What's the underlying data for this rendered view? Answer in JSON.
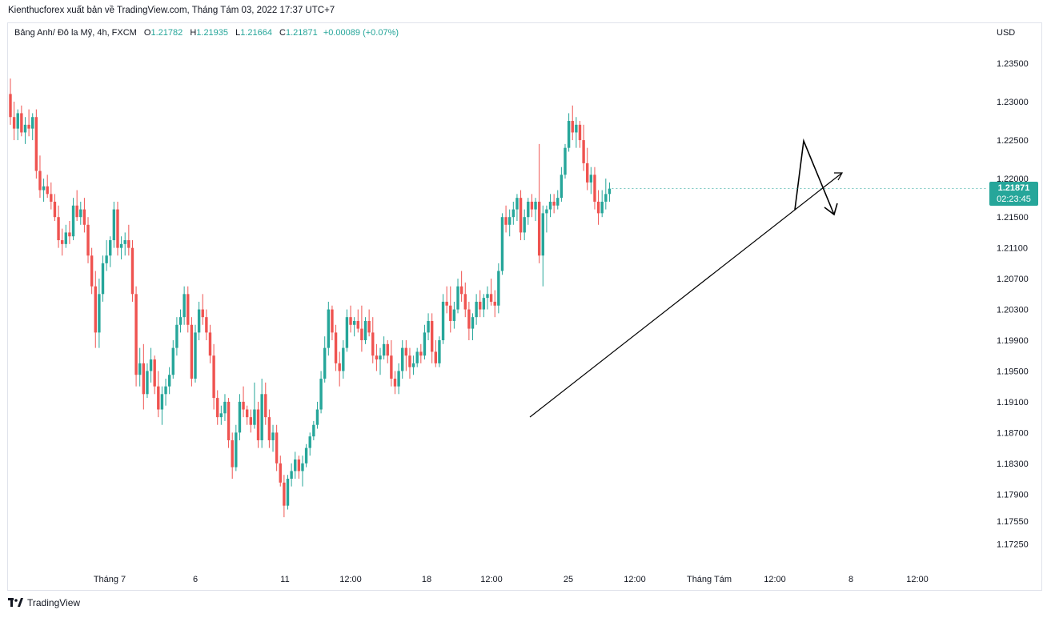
{
  "header": {
    "publish_line": "Kienthucforex xuất bản về TradingView.com, Tháng Tám 03, 2022 17:37 UTC+7"
  },
  "legend": {
    "symbol": "Bảng Anh/ Đô la Mỹ, 4h, FXCM",
    "open_label": "O",
    "open": "1.21782",
    "high_label": "H",
    "high": "1.21935",
    "low_label": "L",
    "low": "1.21664",
    "close_label": "C",
    "close": "1.21871",
    "change": "+0.00089 (+0.07%)"
  },
  "price_badge": {
    "price": "1.21871",
    "countdown": "02:23:45"
  },
  "brand": {
    "name": "TradingView",
    "logo": "tradingview-logo-icon"
  },
  "colors": {
    "up": "#26a69a",
    "down": "#ef5350",
    "grid": "#e0e3eb",
    "text": "#131722"
  },
  "chart_data": {
    "type": "candlestick",
    "currency": "USD",
    "y_ticks": [
      1.235,
      1.23,
      1.225,
      1.22,
      1.215,
      1.211,
      1.207,
      1.203,
      1.199,
      1.195,
      1.191,
      1.187,
      1.183,
      1.179,
      1.1755,
      1.1725
    ],
    "y_tick_labels": [
      "1.23500",
      "1.23000",
      "1.22500",
      "1.22000",
      "1.21500",
      "1.21100",
      "1.20700",
      "1.20300",
      "1.19900",
      "1.19500",
      "1.19100",
      "1.18700",
      "1.18300",
      "1.17900",
      "1.17550",
      "1.17250"
    ],
    "x_tick_labels": [
      "Tháng 7",
      "6",
      "11",
      "12:00",
      "18",
      "12:00",
      "25",
      "12:00",
      "Tháng Tám",
      "12:00",
      "8",
      "12:00"
    ],
    "ohlc": [
      [
        1.231,
        1.233,
        1.227,
        1.228
      ],
      [
        1.228,
        1.23,
        1.225,
        1.2265
      ],
      [
        1.2265,
        1.229,
        1.225,
        1.2285
      ],
      [
        1.2285,
        1.2295,
        1.2255,
        1.226
      ],
      [
        1.226,
        1.228,
        1.2245,
        1.227
      ],
      [
        1.227,
        1.229,
        1.2255,
        1.2265
      ],
      [
        1.2265,
        1.2285,
        1.225,
        1.228
      ],
      [
        1.228,
        1.229,
        1.22,
        1.221
      ],
      [
        1.221,
        1.223,
        1.2175,
        1.2185
      ],
      [
        1.2185,
        1.22,
        1.217,
        1.219
      ],
      [
        1.219,
        1.2205,
        1.2175,
        1.218
      ],
      [
        1.218,
        1.2195,
        1.216,
        1.217
      ],
      [
        1.217,
        1.218,
        1.2145,
        1.215
      ],
      [
        1.215,
        1.2165,
        1.211,
        1.212
      ],
      [
        1.212,
        1.2135,
        1.21,
        1.2115
      ],
      [
        1.2115,
        1.214,
        1.211,
        1.213
      ],
      [
        1.213,
        1.2145,
        1.2115,
        1.2125
      ],
      [
        1.2125,
        1.2175,
        1.212,
        1.2165
      ],
      [
        1.2165,
        1.2185,
        1.2145,
        1.215
      ],
      [
        1.215,
        1.217,
        1.214,
        1.216
      ],
      [
        1.216,
        1.2175,
        1.213,
        1.214
      ],
      [
        1.214,
        1.215,
        1.209,
        1.21
      ],
      [
        1.21,
        1.211,
        1.205,
        1.206
      ],
      [
        1.206,
        1.208,
        1.198,
        1.2
      ],
      [
        1.2,
        1.207,
        1.198,
        1.205
      ],
      [
        1.205,
        1.21,
        1.204,
        1.209
      ],
      [
        1.209,
        1.212,
        1.208,
        1.21
      ],
      [
        1.21,
        1.2125,
        1.2085,
        1.212
      ],
      [
        1.212,
        1.217,
        1.211,
        1.216
      ],
      [
        1.216,
        1.217,
        1.21,
        1.211
      ],
      [
        1.211,
        1.2125,
        1.2095,
        1.2115
      ],
      [
        1.2115,
        1.213,
        1.21,
        1.212
      ],
      [
        1.212,
        1.214,
        1.21,
        1.211
      ],
      [
        1.211,
        1.212,
        1.204,
        1.205
      ],
      [
        1.205,
        1.206,
        1.193,
        1.1945
      ],
      [
        1.1945,
        1.198,
        1.193,
        1.196
      ],
      [
        1.196,
        1.1985,
        1.19,
        1.192
      ],
      [
        1.192,
        1.196,
        1.1915,
        1.195
      ],
      [
        1.195,
        1.198,
        1.1935,
        1.1965
      ],
      [
        1.1965,
        1.197,
        1.192,
        1.193
      ],
      [
        1.193,
        1.195,
        1.189,
        1.19
      ],
      [
        1.19,
        1.193,
        1.188,
        1.192
      ],
      [
        1.192,
        1.194,
        1.1905,
        1.193
      ],
      [
        1.193,
        1.1955,
        1.192,
        1.1945
      ],
      [
        1.1945,
        1.199,
        1.194,
        1.198
      ],
      [
        1.198,
        1.202,
        1.197,
        1.201
      ],
      [
        1.201,
        1.203,
        1.2,
        1.202
      ],
      [
        1.202,
        1.206,
        1.201,
        1.205
      ],
      [
        1.205,
        1.206,
        1.2,
        1.201
      ],
      [
        1.201,
        1.202,
        1.193,
        1.194
      ],
      [
        1.194,
        1.201,
        1.1935,
        1.2
      ],
      [
        1.2,
        1.204,
        1.199,
        1.203
      ],
      [
        1.203,
        1.205,
        1.201,
        1.202
      ],
      [
        1.202,
        1.203,
        1.199,
        1.2
      ],
      [
        1.2,
        1.201,
        1.196,
        1.197
      ],
      [
        1.197,
        1.1985,
        1.19,
        1.1915
      ],
      [
        1.1915,
        1.1925,
        1.188,
        1.189
      ],
      [
        1.189,
        1.1905,
        1.188,
        1.1895
      ],
      [
        1.1895,
        1.192,
        1.1885,
        1.191
      ],
      [
        1.191,
        1.1915,
        1.185,
        1.186
      ],
      [
        1.186,
        1.187,
        1.181,
        1.1825
      ],
      [
        1.1825,
        1.188,
        1.182,
        1.187
      ],
      [
        1.187,
        1.192,
        1.186,
        1.191
      ],
      [
        1.191,
        1.193,
        1.189,
        1.19
      ],
      [
        1.19,
        1.1905,
        1.188,
        1.189
      ],
      [
        1.189,
        1.19,
        1.187,
        1.188
      ],
      [
        1.188,
        1.1935,
        1.1875,
        1.19
      ],
      [
        1.19,
        1.191,
        1.185,
        1.186
      ],
      [
        1.186,
        1.194,
        1.185,
        1.192
      ],
      [
        1.192,
        1.1935,
        1.188,
        1.189
      ],
      [
        1.189,
        1.19,
        1.185,
        1.186
      ],
      [
        1.186,
        1.188,
        1.1845,
        1.187
      ],
      [
        1.187,
        1.188,
        1.182,
        1.183
      ],
      [
        1.183,
        1.184,
        1.18,
        1.1805
      ],
      [
        1.1805,
        1.1815,
        1.176,
        1.1775
      ],
      [
        1.1775,
        1.1815,
        1.177,
        1.181
      ],
      [
        1.181,
        1.183,
        1.18,
        1.182
      ],
      [
        1.182,
        1.1845,
        1.181,
        1.1835
      ],
      [
        1.1835,
        1.184,
        1.181,
        1.182
      ],
      [
        1.182,
        1.184,
        1.18,
        1.183
      ],
      [
        1.183,
        1.1855,
        1.1825,
        1.185
      ],
      [
        1.185,
        1.187,
        1.184,
        1.1865
      ],
      [
        1.1865,
        1.1885,
        1.186,
        1.188
      ],
      [
        1.188,
        1.191,
        1.1875,
        1.19
      ],
      [
        1.19,
        1.195,
        1.1895,
        1.194
      ],
      [
        1.194,
        1.1995,
        1.1935,
        1.198
      ],
      [
        1.198,
        1.204,
        1.197,
        1.203
      ],
      [
        1.203,
        1.2035,
        1.199,
        1.2
      ],
      [
        1.2,
        1.201,
        1.195,
        1.196
      ],
      [
        1.196,
        1.1975,
        1.193,
        1.195
      ],
      [
        1.195,
        1.199,
        1.194,
        1.198
      ],
      [
        1.198,
        1.203,
        1.1975,
        1.202
      ],
      [
        1.202,
        1.2035,
        1.2,
        1.201
      ],
      [
        1.201,
        1.202,
        1.1995,
        1.2015
      ],
      [
        1.2015,
        1.203,
        1.2,
        1.2005
      ],
      [
        1.2005,
        1.2035,
        1.1975,
        1.199
      ],
      [
        1.199,
        1.202,
        1.1985,
        1.2015
      ],
      [
        1.2015,
        1.203,
        1.1995,
        1.2
      ],
      [
        1.2,
        1.202,
        1.196,
        1.197
      ],
      [
        1.197,
        1.1985,
        1.195,
        1.1965
      ],
      [
        1.1965,
        1.198,
        1.1945,
        1.197
      ],
      [
        1.197,
        1.1995,
        1.1965,
        1.1985
      ],
      [
        1.1985,
        1.199,
        1.196,
        1.197
      ],
      [
        1.197,
        1.199,
        1.193,
        1.194
      ],
      [
        1.194,
        1.195,
        1.192,
        1.193
      ],
      [
        1.193,
        1.196,
        1.192,
        1.195
      ],
      [
        1.195,
        1.199,
        1.194,
        1.198
      ],
      [
        1.198,
        1.199,
        1.195,
        1.197
      ],
      [
        1.197,
        1.198,
        1.194,
        1.1955
      ],
      [
        1.1955,
        1.197,
        1.1945,
        1.196
      ],
      [
        1.196,
        1.198,
        1.1955,
        1.1975
      ],
      [
        1.1975,
        1.1985,
        1.196,
        1.197
      ],
      [
        1.197,
        1.201,
        1.1965,
        1.2
      ],
      [
        1.2,
        1.2025,
        1.199,
        1.2015
      ],
      [
        1.2015,
        1.2025,
        1.196,
        1.1975
      ],
      [
        1.1975,
        1.199,
        1.1955,
        1.196
      ],
      [
        1.196,
        1.1995,
        1.1955,
        1.199
      ],
      [
        1.199,
        1.205,
        1.1985,
        1.204
      ],
      [
        1.204,
        1.206,
        1.2025,
        1.2035
      ],
      [
        1.2035,
        1.206,
        1.2,
        1.2015
      ],
      [
        1.2015,
        1.204,
        1.2005,
        1.203
      ],
      [
        1.203,
        1.207,
        1.2025,
        1.206
      ],
      [
        1.206,
        1.208,
        1.204,
        1.205
      ],
      [
        1.205,
        1.2065,
        1.202,
        1.203
      ],
      [
        1.203,
        1.204,
        1.199,
        1.2005
      ],
      [
        1.2005,
        1.2025,
        1.199,
        1.202
      ],
      [
        1.202,
        1.205,
        1.201,
        1.204
      ],
      [
        1.204,
        1.2055,
        1.202,
        1.203
      ],
      [
        1.203,
        1.205,
        1.202,
        1.2045
      ],
      [
        1.2045,
        1.206,
        1.203,
        1.205
      ],
      [
        1.205,
        1.207,
        1.2035,
        1.204
      ],
      [
        1.204,
        1.2055,
        1.202,
        1.2035
      ],
      [
        1.2035,
        1.209,
        1.2025,
        1.208
      ],
      [
        1.208,
        1.2155,
        1.2075,
        1.215
      ],
      [
        1.215,
        1.2165,
        1.213,
        1.214
      ],
      [
        1.214,
        1.216,
        1.2125,
        1.215
      ],
      [
        1.215,
        1.217,
        1.214,
        1.216
      ],
      [
        1.216,
        1.218,
        1.2145,
        1.2175
      ],
      [
        1.2175,
        1.2185,
        1.212,
        1.213
      ],
      [
        1.213,
        1.216,
        1.212,
        1.215
      ],
      [
        1.215,
        1.2175,
        1.214,
        1.217
      ],
      [
        1.217,
        1.218,
        1.215,
        1.216
      ],
      [
        1.216,
        1.2175,
        1.2145,
        1.217
      ],
      [
        1.217,
        1.2245,
        1.209,
        1.21
      ],
      [
        1.21,
        1.2165,
        1.206,
        1.2155
      ],
      [
        1.2155,
        1.2165,
        1.213,
        1.216
      ],
      [
        1.216,
        1.218,
        1.215,
        1.217
      ],
      [
        1.217,
        1.218,
        1.2155,
        1.2165
      ],
      [
        1.2165,
        1.2185,
        1.216,
        1.2175
      ],
      [
        1.2175,
        1.2215,
        1.217,
        1.2205
      ],
      [
        1.2205,
        1.2245,
        1.22,
        1.224
      ],
      [
        1.224,
        1.2285,
        1.2235,
        1.2275
      ],
      [
        1.2275,
        1.2295,
        1.225,
        1.226
      ],
      [
        1.226,
        1.228,
        1.224,
        1.227
      ],
      [
        1.227,
        1.2275,
        1.224,
        1.225
      ],
      [
        1.225,
        1.227,
        1.221,
        1.222
      ],
      [
        1.222,
        1.224,
        1.2185,
        1.2195
      ],
      [
        1.2195,
        1.2215,
        1.218,
        1.2205
      ],
      [
        1.2205,
        1.2215,
        1.216,
        1.217
      ],
      [
        1.217,
        1.2185,
        1.214,
        1.2155
      ],
      [
        1.2155,
        1.2185,
        1.215,
        1.217
      ],
      [
        1.217,
        1.22,
        1.216,
        1.218
      ],
      [
        1.218,
        1.2195,
        1.217,
        1.2187
      ]
    ],
    "trendline": {
      "from": [
        1.1895
      ],
      "to": [
        1.2155
      ]
    },
    "title": "",
    "xlabel": "",
    "ylabel": ""
  }
}
